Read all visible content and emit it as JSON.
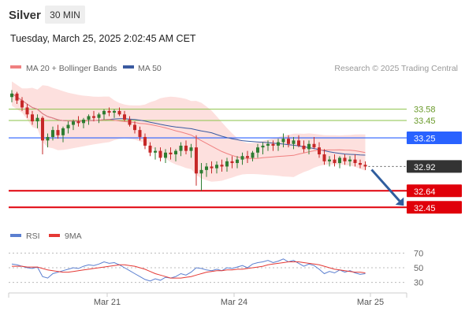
{
  "header": {
    "instrument": "Silver",
    "timeframe": "30 MIN",
    "timestamp": "Tuesday, March 25, 2025 2:02:45 AM CET"
  },
  "legend": {
    "ma20_bb": "MA 20 + Bollinger Bands",
    "ma50": "MA 50",
    "credit": "Research © 2025 Trading Central",
    "rsi": "RSI",
    "rsi_ma": "9MA"
  },
  "colors": {
    "candle_up": "#2e7d32",
    "candle_down": "#c62828",
    "ma20": "#f08080",
    "bb_fill": "#fde0de",
    "ma50": "#3a5aa0",
    "resistance": "#8bc34a",
    "pivot": "#2962ff",
    "support": "#e0000a",
    "current": "#333333",
    "arrow": "#2f5d9e",
    "rsi": "#5b7fd0",
    "rsi_ma": "#e53935"
  },
  "chart_data": [
    {
      "type": "candlestick",
      "y_range": [
        32.28,
        33.84
      ],
      "x_ticks": [
        "Mar 21",
        "Mar 24",
        "Mar 25"
      ],
      "levels": [
        {
          "label": "33.58",
          "value": 33.58,
          "kind": "resistance"
        },
        {
          "label": "33.45",
          "value": 33.45,
          "kind": "resistance"
        },
        {
          "label": "33.25",
          "value": 33.25,
          "kind": "pivot"
        },
        {
          "label": "32.92",
          "value": 32.92,
          "kind": "current"
        },
        {
          "label": "32.64",
          "value": 32.64,
          "kind": "support"
        },
        {
          "label": "32.45",
          "value": 32.45,
          "kind": "support"
        }
      ],
      "candles": [
        [
          33.72,
          33.8,
          33.66,
          33.76
        ],
        [
          33.76,
          33.78,
          33.64,
          33.68
        ],
        [
          33.68,
          33.72,
          33.56,
          33.6
        ],
        [
          33.6,
          33.64,
          33.48,
          33.52
        ],
        [
          33.52,
          33.56,
          33.4,
          33.44
        ],
        [
          33.44,
          33.52,
          33.36,
          33.48
        ],
        [
          33.48,
          33.5,
          33.06,
          33.22
        ],
        [
          33.22,
          33.3,
          33.14,
          33.26
        ],
        [
          33.26,
          33.38,
          33.22,
          33.34
        ],
        [
          33.34,
          33.4,
          33.24,
          33.28
        ],
        [
          33.28,
          33.38,
          33.2,
          33.36
        ],
        [
          33.36,
          33.44,
          33.3,
          33.4
        ],
        [
          33.4,
          33.46,
          33.34,
          33.44
        ],
        [
          33.44,
          33.5,
          33.38,
          33.42
        ],
        [
          33.42,
          33.48,
          33.36,
          33.46
        ],
        [
          33.46,
          33.52,
          33.4,
          33.5
        ],
        [
          33.5,
          33.56,
          33.44,
          33.48
        ],
        [
          33.48,
          33.54,
          33.42,
          33.52
        ],
        [
          33.52,
          33.58,
          33.46,
          33.56
        ],
        [
          33.56,
          33.6,
          33.5,
          33.54
        ],
        [
          33.54,
          33.58,
          33.48,
          33.56
        ],
        [
          33.56,
          33.6,
          33.5,
          33.52
        ],
        [
          33.52,
          33.56,
          33.44,
          33.46
        ],
        [
          33.46,
          33.5,
          33.38,
          33.4
        ],
        [
          33.4,
          33.44,
          33.3,
          33.34
        ],
        [
          33.34,
          33.38,
          33.22,
          33.26
        ],
        [
          33.26,
          33.3,
          33.12,
          33.16
        ],
        [
          33.16,
          33.2,
          33.04,
          33.08
        ],
        [
          33.08,
          33.14,
          33.0,
          33.1
        ],
        [
          33.1,
          33.14,
          32.98,
          33.02
        ],
        [
          33.02,
          33.12,
          32.96,
          33.08
        ],
        [
          33.08,
          33.14,
          33.0,
          33.06
        ],
        [
          33.06,
          33.12,
          32.98,
          33.1
        ],
        [
          33.1,
          33.2,
          33.04,
          33.16
        ],
        [
          33.16,
          33.22,
          33.06,
          33.1
        ],
        [
          33.1,
          33.18,
          33.02,
          33.14
        ],
        [
          33.14,
          33.28,
          32.7,
          32.84
        ],
        [
          32.84,
          32.96,
          32.64,
          32.88
        ],
        [
          32.88,
          32.96,
          32.8,
          32.92
        ],
        [
          32.92,
          32.98,
          32.84,
          32.9
        ],
        [
          32.9,
          32.98,
          32.84,
          32.94
        ],
        [
          32.94,
          33.0,
          32.86,
          32.92
        ],
        [
          32.92,
          33.02,
          32.86,
          32.98
        ],
        [
          32.98,
          33.04,
          32.9,
          32.96
        ],
        [
          32.96,
          33.04,
          32.9,
          33.0
        ],
        [
          33.0,
          33.08,
          32.94,
          33.04
        ],
        [
          33.04,
          33.1,
          32.96,
          33.02
        ],
        [
          33.02,
          33.1,
          32.98,
          33.08
        ],
        [
          33.08,
          33.18,
          33.02,
          33.14
        ],
        [
          33.14,
          33.2,
          33.06,
          33.16
        ],
        [
          33.16,
          33.22,
          33.1,
          33.18
        ],
        [
          33.18,
          33.22,
          33.1,
          33.16
        ],
        [
          33.16,
          33.24,
          33.1,
          33.2
        ],
        [
          33.2,
          33.3,
          33.14,
          33.24
        ],
        [
          33.24,
          33.28,
          33.14,
          33.18
        ],
        [
          33.18,
          33.26,
          33.12,
          33.22
        ],
        [
          33.22,
          33.28,
          33.14,
          33.16
        ],
        [
          33.16,
          33.22,
          33.08,
          33.12
        ],
        [
          33.12,
          33.22,
          33.06,
          33.18
        ],
        [
          33.18,
          33.26,
          33.12,
          33.14
        ],
        [
          33.14,
          33.2,
          33.02,
          33.06
        ],
        [
          33.06,
          33.12,
          32.94,
          32.98
        ],
        [
          32.98,
          33.04,
          32.92,
          33.0
        ],
        [
          33.0,
          33.06,
          32.92,
          32.96
        ],
        [
          32.96,
          33.04,
          32.9,
          33.02
        ],
        [
          33.02,
          33.06,
          32.94,
          32.98
        ],
        [
          32.98,
          33.04,
          32.92,
          33.0
        ],
        [
          33.0,
          33.06,
          32.92,
          32.96
        ],
        [
          32.96,
          33.0,
          32.9,
          32.94
        ],
        [
          32.94,
          32.98,
          32.88,
          32.92
        ]
      ]
    },
    {
      "type": "line",
      "y_ticks": [
        70,
        50,
        30
      ],
      "y_range": [
        20,
        80
      ],
      "series": [
        {
          "name": "RSI",
          "values": [
            55,
            54,
            52,
            50,
            49,
            51,
            38,
            36,
            42,
            44,
            46,
            48,
            50,
            49,
            52,
            54,
            53,
            55,
            58,
            56,
            57,
            54,
            50,
            46,
            42,
            38,
            34,
            32,
            35,
            33,
            37,
            36,
            38,
            42,
            40,
            44,
            50,
            49,
            47,
            46,
            48,
            46,
            50,
            49,
            51,
            53,
            50,
            55,
            57,
            58,
            60,
            57,
            59,
            62,
            58,
            60,
            56,
            52,
            55,
            53,
            48,
            42,
            45,
            43,
            47,
            44,
            46,
            43,
            41,
            42
          ]
        },
        {
          "name": "9MA",
          "values": [
            52,
            52,
            52,
            51,
            51,
            51,
            49,
            47,
            46,
            45,
            44,
            44,
            45,
            46,
            47,
            48,
            49,
            50,
            51,
            52,
            53,
            54,
            54,
            53,
            52,
            50,
            48,
            45,
            42,
            40,
            38,
            36,
            36,
            36,
            37,
            38,
            40,
            42,
            44,
            45,
            46,
            46,
            47,
            47,
            48,
            48,
            49,
            50,
            51,
            52,
            54,
            55,
            56,
            57,
            58,
            58,
            58,
            57,
            56,
            55,
            54,
            52,
            50,
            48,
            47,
            46,
            45,
            44,
            44,
            43
          ]
        }
      ]
    }
  ]
}
